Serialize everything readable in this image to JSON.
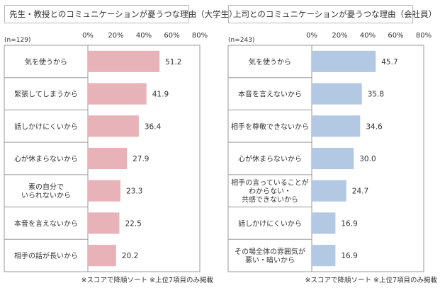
{
  "chart_data": [
    {
      "type": "bar",
      "orientation": "horizontal",
      "title": "先生・教授とのコミュニケーションが憂うつな理由（大学生）",
      "sample_size": "(n=129)",
      "x_ticks": [
        "0%",
        "20%",
        "40%",
        "60%",
        "80%"
      ],
      "xlim": [
        0,
        80
      ],
      "categories": [
        [
          "気を使うから"
        ],
        [
          "緊張してしまうから"
        ],
        [
          "話しかけにくいから"
        ],
        [
          "心が休まらないから"
        ],
        [
          "素の自分で",
          "いられないから"
        ],
        [
          "本音を言えないから"
        ],
        [
          "相手の話が長いから"
        ]
      ],
      "values": [
        51.2,
        41.9,
        36.4,
        27.9,
        23.3,
        22.5,
        20.2
      ],
      "value_labels": [
        "51.2",
        "41.9",
        "36.4",
        "27.9",
        "23.3",
        "22.5",
        "20.2"
      ],
      "bar_color": "#e7b3b8",
      "footnote": "※スコアで降順ソート ※上位7項目のみ掲載"
    },
    {
      "type": "bar",
      "orientation": "horizontal",
      "title": "上司とのコミュニケーションが憂うつな理由（会社員）",
      "sample_size": "(n=243)",
      "x_ticks": [
        "0%",
        "20%",
        "40%",
        "60%",
        "80%"
      ],
      "xlim": [
        0,
        80
      ],
      "categories": [
        [
          "気を使うから"
        ],
        [
          "本音を言えないから"
        ],
        [
          "相手を尊敬できないから"
        ],
        [
          "心が休まらないから"
        ],
        [
          "相手の言っていることが",
          "わからない・",
          "共感できないから"
        ],
        [
          "話しかけにくいから"
        ],
        [
          "その場全体の雰囲気が",
          "悪い・暗いから"
        ]
      ],
      "values": [
        45.7,
        35.8,
        34.6,
        30.0,
        24.7,
        16.9,
        16.9
      ],
      "value_labels": [
        "45.7",
        "35.8",
        "34.6",
        "30.0",
        "24.7",
        "16.9",
        "16.9"
      ],
      "bar_color": "#b3c9e3",
      "footnote": "※スコアで降順ソート ※上位7項目のみ掲載"
    }
  ]
}
